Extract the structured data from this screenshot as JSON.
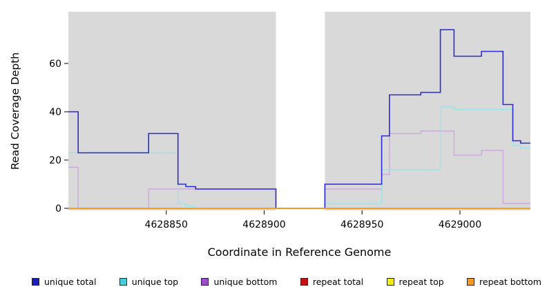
{
  "chart_data": {
    "type": "line",
    "step": true,
    "title": "",
    "xlabel": "Coordinate in Reference Genome",
    "ylabel": "Read Coverage Depth",
    "x_ticks": [
      4628850,
      4628900,
      4628950,
      4629000
    ],
    "y_ticks": [
      0,
      20,
      40,
      60
    ],
    "xlim": [
      4628800,
      4629036
    ],
    "ylim": [
      0,
      82
    ],
    "grid": false,
    "plot_bg": "#d9d9d9",
    "no_data_region": [
      4628906,
      4628931
    ],
    "series": [
      {
        "name": "unique total",
        "color": "#2a2ad4",
        "width": 1.6,
        "points": [
          [
            4628800,
            40
          ],
          [
            4628805,
            23
          ],
          [
            4628841,
            31
          ],
          [
            4628856,
            10
          ],
          [
            4628860,
            9
          ],
          [
            4628865,
            8
          ],
          [
            4628906,
            0
          ],
          [
            4628931,
            10
          ],
          [
            4628960,
            30
          ],
          [
            4628964,
            47
          ],
          [
            4628980,
            48
          ],
          [
            4628990,
            74
          ],
          [
            4628997,
            63
          ],
          [
            4629011,
            65
          ],
          [
            4629022,
            43
          ],
          [
            4629027,
            28
          ],
          [
            4629031,
            27
          ]
        ]
      },
      {
        "name": "unique top",
        "color": "#9ae4e8",
        "width": 1.4,
        "points": [
          [
            4628800,
            23
          ],
          [
            4628856,
            2
          ],
          [
            4628860,
            1
          ],
          [
            4628865,
            0
          ],
          [
            4628931,
            2
          ],
          [
            4628960,
            16
          ],
          [
            4628990,
            42
          ],
          [
            4628997,
            41
          ],
          [
            4629027,
            26
          ],
          [
            4629031,
            25
          ]
        ]
      },
      {
        "name": "unique bottom",
        "color": "#cfa6e0",
        "width": 1.4,
        "points": [
          [
            4628800,
            17
          ],
          [
            4628805,
            0
          ],
          [
            4628841,
            8
          ],
          [
            4628906,
            0
          ],
          [
            4628931,
            8
          ],
          [
            4628960,
            14
          ],
          [
            4628964,
            31
          ],
          [
            4628980,
            32
          ],
          [
            4628997,
            22
          ],
          [
            4629011,
            24
          ],
          [
            4629022,
            2
          ]
        ]
      },
      {
        "name": "repeat total",
        "color": "#c41111",
        "width": 1.4,
        "points": [
          [
            4628800,
            0
          ]
        ]
      },
      {
        "name": "repeat top",
        "color": "#f2ee12",
        "width": 1.4,
        "points": [
          [
            4628800,
            0
          ]
        ]
      },
      {
        "name": "repeat bottom",
        "color": "#f59a23",
        "width": 1.5,
        "points": [
          [
            4628800,
            0
          ]
        ]
      }
    ],
    "legend": [
      {
        "label": "unique total",
        "color": "#1d1dbe"
      },
      {
        "label": "unique top",
        "color": "#49cdd6"
      },
      {
        "label": "unique bottom",
        "color": "#9a4fc8"
      },
      {
        "label": "repeat total",
        "color": "#c41111"
      },
      {
        "label": "repeat top",
        "color": "#f2ee12"
      },
      {
        "label": "repeat bottom",
        "color": "#f59a23"
      }
    ]
  }
}
